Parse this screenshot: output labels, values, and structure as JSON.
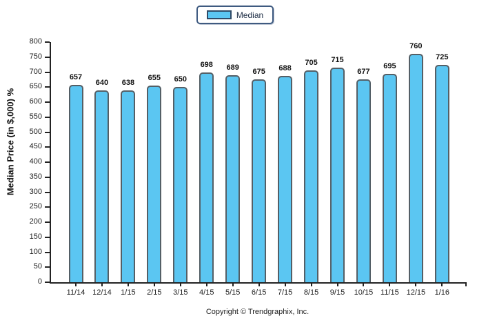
{
  "chart_data": {
    "type": "bar",
    "title": "",
    "xlabel": "",
    "ylabel": "Median Price (in $,000) %",
    "ylim": [
      0,
      800
    ],
    "ytick_step": 50,
    "grid": false,
    "legend_position": "top-center",
    "categories": [
      "11/14",
      "12/14",
      "1/15",
      "2/15",
      "3/15",
      "4/15",
      "5/15",
      "6/15",
      "7/15",
      "8/15",
      "9/15",
      "10/15",
      "11/15",
      "12/15",
      "1/16"
    ],
    "series": [
      {
        "name": "Median",
        "values": [
          657,
          640,
          638,
          655,
          650,
          698,
          689,
          675,
          688,
          705,
          715,
          677,
          695,
          760,
          725
        ]
      }
    ],
    "colors": {
      "bar_fill": "#5bc6f2",
      "bar_border": "#545f66",
      "legend_border": "#3e5a80",
      "axis": "#222222",
      "value_label": "#111111"
    }
  },
  "footer": {
    "copyright": "Copyright © Trendgraphix, Inc."
  }
}
